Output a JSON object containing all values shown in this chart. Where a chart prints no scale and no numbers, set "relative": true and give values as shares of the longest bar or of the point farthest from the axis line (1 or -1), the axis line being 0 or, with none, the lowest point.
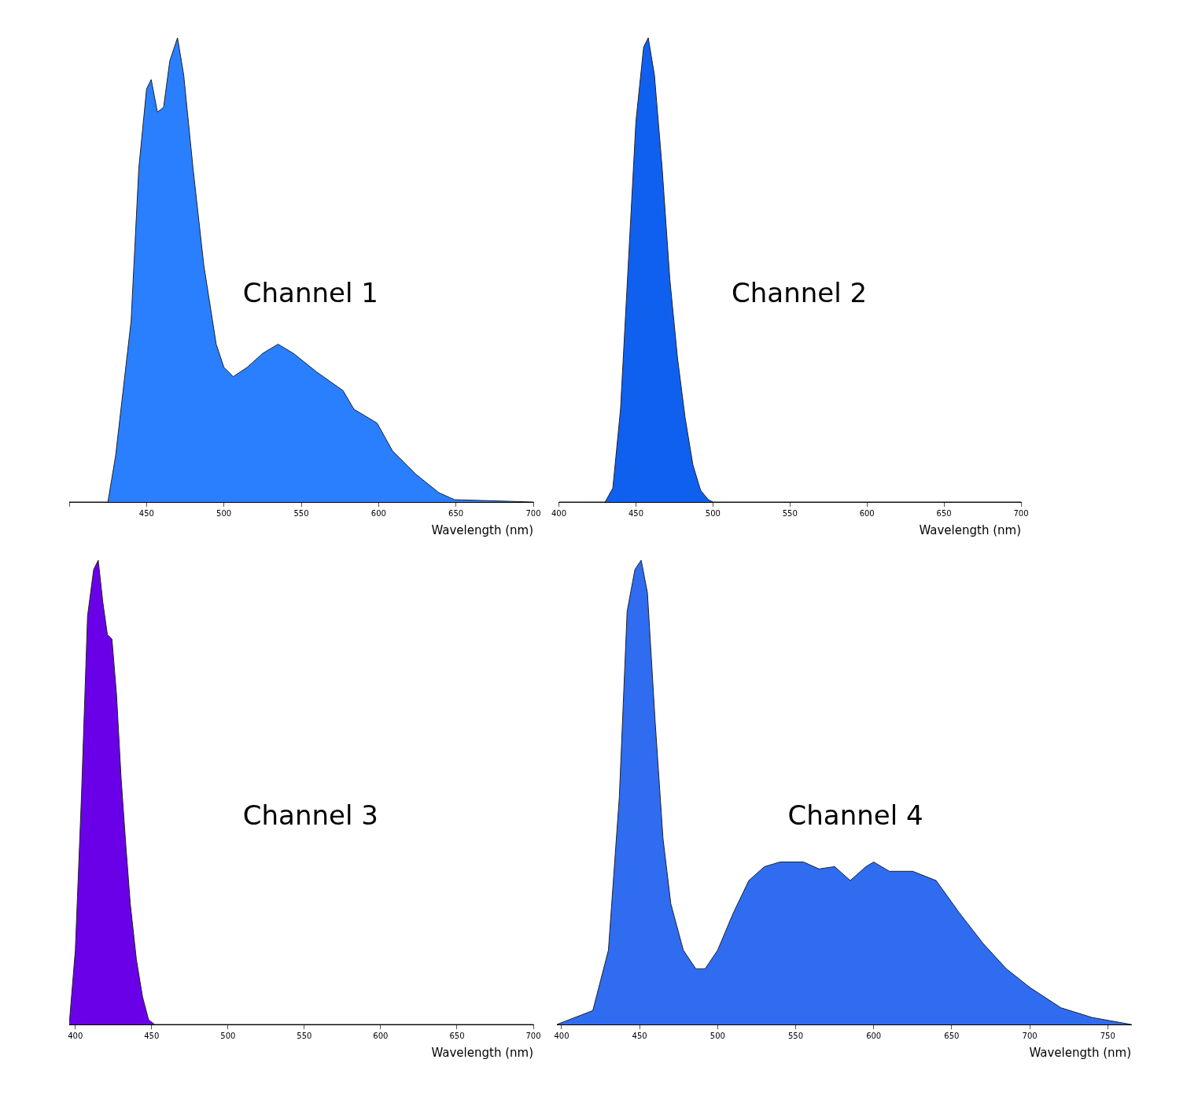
{
  "chart_data": [
    {
      "type": "area",
      "title": "Channel 1",
      "xlabel": "Wavelength (nm)",
      "relative": true,
      "xlim": [
        400,
        700
      ],
      "xticks": [
        {
          "value": 400,
          "label": null
        },
        450,
        500,
        550,
        600,
        650,
        700
      ],
      "grid": false,
      "legend": false,
      "marker": "none",
      "series": [
        {
          "color": "#2a7fff",
          "x": [
            400,
            425,
            430,
            440,
            445,
            450,
            453,
            457,
            461,
            465,
            470,
            474,
            480,
            487,
            495,
            500,
            506,
            515,
            525,
            535,
            545,
            560,
            577,
            584,
            599,
            609,
            624,
            639,
            649,
            700
          ],
          "values": [
            0,
            0,
            0.1,
            0.39,
            0.72,
            0.89,
            0.91,
            0.84,
            0.85,
            0.95,
            1,
            0.92,
            0.72,
            0.51,
            0.34,
            0.29,
            0.27,
            0.29,
            0.32,
            0.34,
            0.32,
            0.28,
            0.24,
            0.2,
            0.17,
            0.11,
            0.06,
            0.02,
            0.005,
            0
          ]
        }
      ]
    },
    {
      "type": "area",
      "title": "Channel 2",
      "xlabel": "Wavelength (nm)",
      "relative": true,
      "xlim": [
        400,
        700
      ],
      "xticks": [
        400,
        450,
        500,
        550,
        600,
        650,
        700
      ],
      "grid": false,
      "legend": false,
      "marker": "none",
      "series": [
        {
          "color": "#1060f0",
          "x": [
            400,
            430,
            435,
            440,
            445,
            450,
            455,
            458,
            462,
            467,
            472,
            477,
            482,
            487,
            492,
            497,
            500,
            700
          ],
          "values": [
            0,
            0,
            0.03,
            0.2,
            0.51,
            0.82,
            0.98,
            1,
            0.92,
            0.72,
            0.48,
            0.31,
            0.18,
            0.08,
            0.025,
            0.005,
            0,
            0
          ]
        }
      ]
    },
    {
      "type": "area",
      "title": "Channel 3",
      "xlabel": "Wavelength (nm)",
      "relative": true,
      "xlim": [
        396,
        700
      ],
      "xticks": [
        400,
        450,
        500,
        550,
        600,
        650,
        700
      ],
      "grid": false,
      "legend": false,
      "marker": "none",
      "series": [
        {
          "color": "#6a00e8",
          "x": [
            396,
            400,
            404,
            408,
            412,
            415,
            418,
            421,
            424,
            427,
            430,
            433,
            436,
            440,
            444,
            448,
            452,
            700
          ],
          "values": [
            0,
            0.16,
            0.49,
            0.88,
            0.98,
            1,
            0.91,
            0.84,
            0.83,
            0.71,
            0.53,
            0.39,
            0.26,
            0.14,
            0.06,
            0.01,
            0,
            0
          ]
        }
      ]
    },
    {
      "type": "area",
      "title": "Channel 4",
      "xlabel": "Wavelength (nm)",
      "relative": true,
      "xlim": [
        397,
        765
      ],
      "xticks": [
        400,
        450,
        500,
        550,
        600,
        650,
        700,
        750
      ],
      "grid": false,
      "legend": false,
      "marker": "none",
      "series": [
        {
          "color": "#2f6cf0",
          "x": [
            397,
            420,
            430,
            437,
            442,
            447,
            451,
            455,
            460,
            465,
            470,
            478,
            486,
            492,
            500,
            510,
            520,
            530,
            540,
            555,
            565,
            575,
            585,
            595,
            600,
            610,
            625,
            640,
            655,
            670,
            685,
            700,
            720,
            740,
            765
          ],
          "values": [
            0,
            0.03,
            0.16,
            0.49,
            0.89,
            0.98,
            1,
            0.93,
            0.65,
            0.4,
            0.26,
            0.16,
            0.12,
            0.12,
            0.16,
            0.24,
            0.31,
            0.34,
            0.35,
            0.35,
            0.335,
            0.34,
            0.31,
            0.34,
            0.35,
            0.33,
            0.33,
            0.31,
            0.24,
            0.175,
            0.12,
            0.08,
            0.036,
            0.015,
            0
          ]
        }
      ]
    }
  ]
}
